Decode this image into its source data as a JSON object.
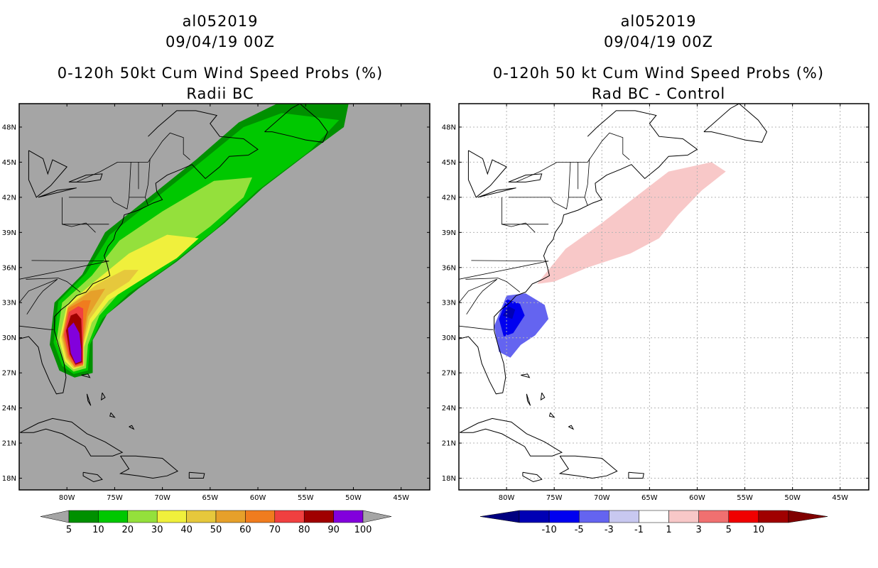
{
  "left_panel": {
    "title_lines": [
      "al052019",
      "09/04/19 00Z"
    ],
    "subtitle_lines": [
      "0-120h 50kt Cum Wind Speed Probs (%)",
      "Radii BC"
    ],
    "background": "#a5a5a5"
  },
  "right_panel": {
    "title_lines": [
      "al052019",
      "09/04/19 00Z"
    ],
    "subtitle_lines": [
      "0-120h 50 kt Cum Wind Speed Probs (%)",
      "Rad BC - Control"
    ],
    "background": "#ffffff"
  },
  "chart_data": [
    {
      "type": "heatmap",
      "title": "0-120h 50kt Cum Wind Speed Probs (%)",
      "subtitle": "Radii BC",
      "storm": "al052019",
      "init_time": "09/04/19 00Z",
      "xlim": [
        -85,
        -42
      ],
      "ylim": [
        17,
        50
      ],
      "x_ticks": [
        "80W",
        "75W",
        "70W",
        "65W",
        "60W",
        "55W",
        "50W",
        "45W"
      ],
      "y_ticks": [
        "48N",
        "45N",
        "42N",
        "39N",
        "36N",
        "33N",
        "30N",
        "27N",
        "24N",
        "21N",
        "18N"
      ],
      "grid": false,
      "colorbar": {
        "labels": [
          "5",
          "10",
          "20",
          "30",
          "40",
          "50",
          "60",
          "70",
          "80",
          "90",
          "100"
        ],
        "levels": [
          5,
          10,
          20,
          30,
          40,
          50,
          60,
          70,
          80,
          90,
          100
        ],
        "colors": [
          "#009000",
          "#00c800",
          "#94e03c",
          "#f0f03c",
          "#e6c83c",
          "#e6a02a",
          "#f07c1e",
          "#f04040",
          "#a00000",
          "#8200dc"
        ],
        "under_color": "#a5a5a5",
        "over_color": "#a5a5a5"
      },
      "contour_bands": [
        {
          "level": 5,
          "pts": [
            [
              -81.8,
              29.4
            ],
            [
              -81.3,
              33.0
            ],
            [
              -78.4,
              35.4
            ],
            [
              -76.0,
              39.0
            ],
            [
              -72.0,
              41.6
            ],
            [
              -66.5,
              45.2
            ],
            [
              -62.0,
              48.4
            ],
            [
              -58.0,
              50.0
            ],
            [
              -50.5,
              50.0
            ],
            [
              -51.0,
              48.0
            ],
            [
              -55.0,
              45.6
            ],
            [
              -59.5,
              42.8
            ],
            [
              -63.5,
              39.8
            ],
            [
              -68.5,
              36.5
            ],
            [
              -72.5,
              34.2
            ],
            [
              -75.8,
              32.0
            ],
            [
              -77.3,
              29.8
            ],
            [
              -77.3,
              27.0
            ],
            [
              -79.2,
              26.6
            ],
            [
              -80.8,
              27.2
            ]
          ]
        },
        {
          "level": 10,
          "pts": [
            [
              -81.4,
              29.6
            ],
            [
              -80.9,
              33.1
            ],
            [
              -78.0,
              35.5
            ],
            [
              -75.5,
              38.8
            ],
            [
              -71.5,
              41.4
            ],
            [
              -66.0,
              45.0
            ],
            [
              -61.5,
              48.0
            ],
            [
              -57.5,
              49.2
            ],
            [
              -51.5,
              48.6
            ],
            [
              -54.5,
              46.0
            ],
            [
              -60.0,
              42.6
            ],
            [
              -64.5,
              39.2
            ],
            [
              -69.5,
              36.0
            ],
            [
              -73.5,
              33.8
            ],
            [
              -76.3,
              31.6
            ],
            [
              -77.6,
              29.4
            ],
            [
              -77.8,
              27.2
            ],
            [
              -79.3,
              26.9
            ],
            [
              -80.5,
              27.6
            ]
          ]
        },
        {
          "level": 20,
          "pts": [
            [
              -81.1,
              29.7
            ],
            [
              -80.5,
              33.0
            ],
            [
              -77.4,
              35.3
            ],
            [
              -74.5,
              38.3
            ],
            [
              -70.0,
              40.8
            ],
            [
              -64.6,
              43.4
            ],
            [
              -60.6,
              43.7
            ],
            [
              -61.5,
              42.0
            ],
            [
              -65.0,
              39.5
            ],
            [
              -69.8,
              36.6
            ],
            [
              -74.0,
              34.3
            ],
            [
              -76.6,
              31.9
            ],
            [
              -77.8,
              29.4
            ],
            [
              -78.0,
              27.4
            ],
            [
              -79.3,
              27.1
            ],
            [
              -80.3,
              27.8
            ]
          ]
        },
        {
          "level": 30,
          "pts": [
            [
              -80.8,
              29.8
            ],
            [
              -80.0,
              32.8
            ],
            [
              -76.8,
              35.0
            ],
            [
              -73.5,
              37.2
            ],
            [
              -69.5,
              38.8
            ],
            [
              -66.2,
              38.5
            ],
            [
              -68.5,
              36.8
            ],
            [
              -72.5,
              34.8
            ],
            [
              -75.6,
              33.2
            ],
            [
              -77.4,
              31.3
            ],
            [
              -78.2,
              29.2
            ],
            [
              -78.2,
              27.6
            ],
            [
              -79.3,
              27.3
            ],
            [
              -80.2,
              28.0
            ]
          ]
        },
        {
          "level": 40,
          "pts": [
            [
              -80.6,
              30.0
            ],
            [
              -79.9,
              32.7
            ],
            [
              -76.8,
              34.6
            ],
            [
              -74.0,
              35.8
            ],
            [
              -72.5,
              35.8
            ],
            [
              -73.5,
              34.8
            ],
            [
              -75.8,
              33.6
            ],
            [
              -77.6,
              31.6
            ],
            [
              -78.3,
              29.3
            ],
            [
              -78.3,
              27.6
            ],
            [
              -79.3,
              27.4
            ],
            [
              -80.1,
              28.2
            ]
          ]
        },
        {
          "level": 50,
          "pts": [
            [
              -80.5,
              30.1
            ],
            [
              -79.9,
              32.6
            ],
            [
              -77.5,
              34.0
            ],
            [
              -76.0,
              34.2
            ],
            [
              -76.6,
              33.4
            ],
            [
              -77.8,
              31.8
            ],
            [
              -78.3,
              29.4
            ],
            [
              -78.3,
              27.6
            ],
            [
              -79.2,
              27.5
            ],
            [
              -80.0,
              28.3
            ]
          ]
        },
        {
          "level": 60,
          "pts": [
            [
              -80.4,
              30.2
            ],
            [
              -79.9,
              32.5
            ],
            [
              -78.3,
              33.2
            ],
            [
              -77.5,
              33.2
            ],
            [
              -77.9,
              32.1
            ],
            [
              -78.3,
              30.0
            ],
            [
              -78.3,
              27.7
            ],
            [
              -79.2,
              27.5
            ],
            [
              -79.9,
              28.4
            ]
          ]
        },
        {
          "level": 70,
          "pts": [
            [
              -80.3,
              30.3
            ],
            [
              -79.8,
              32.2
            ],
            [
              -78.8,
              32.7
            ],
            [
              -78.3,
              32.5
            ],
            [
              -78.3,
              30.5
            ],
            [
              -78.3,
              27.8
            ],
            [
              -79.1,
              27.6
            ],
            [
              -79.8,
              28.5
            ]
          ]
        },
        {
          "level": 80,
          "pts": [
            [
              -80.1,
              30.6
            ],
            [
              -79.6,
              31.9
            ],
            [
              -79.0,
              32.1
            ],
            [
              -78.5,
              31.6
            ],
            [
              -78.4,
              29.4
            ],
            [
              -78.4,
              27.9
            ],
            [
              -79.1,
              27.7
            ],
            [
              -79.7,
              28.6
            ]
          ]
        },
        {
          "level": 90,
          "pts": [
            [
              -79.9,
              30.8
            ],
            [
              -79.3,
              31.3
            ],
            [
              -78.7,
              30.4
            ],
            [
              -78.5,
              29.0
            ],
            [
              -78.5,
              28.0
            ],
            [
              -79.1,
              27.8
            ],
            [
              -79.6,
              28.7
            ]
          ]
        }
      ]
    },
    {
      "type": "heatmap",
      "title": "0-120h 50 kt Cum Wind Speed Probs (%)",
      "subtitle": "Rad BC - Control",
      "storm": "al052019",
      "init_time": "09/04/19 00Z",
      "xlim": [
        -85,
        -42
      ],
      "ylim": [
        17,
        50
      ],
      "x_ticks": [
        "80W",
        "75W",
        "70W",
        "65W",
        "60W",
        "55W",
        "50W",
        "45W"
      ],
      "y_ticks": [
        "48N",
        "45N",
        "42N",
        "39N",
        "36N",
        "33N",
        "30N",
        "27N",
        "24N",
        "21N",
        "18N"
      ],
      "grid": true,
      "colorbar": {
        "labels": [
          "-10",
          "-5",
          "-3",
          "-1",
          "1",
          "3",
          "5",
          "10"
        ],
        "levels": [
          -10,
          -5,
          -3,
          -1,
          1,
          3,
          5,
          10
        ],
        "colors": [
          "#0000b4",
          "#0000f0",
          "#6464f0",
          "#c8c8f0",
          "#ffffff",
          "#f8c8c8",
          "#f07070",
          "#f00000",
          "#a00000"
        ],
        "under_color": "#000080",
        "over_color": "#800000"
      },
      "contour_bands": [
        {
          "level": 1,
          "pts": [
            [
              -76.8,
              34.6
            ],
            [
              -73.8,
              37.6
            ],
            [
              -70.0,
              39.8
            ],
            [
              -66.2,
              42.2
            ],
            [
              -63.0,
              44.2
            ],
            [
              -58.5,
              45.0
            ],
            [
              -57.0,
              44.2
            ],
            [
              -59.5,
              42.6
            ],
            [
              -62.0,
              40.5
            ],
            [
              -64.0,
              38.5
            ],
            [
              -67.0,
              37.2
            ],
            [
              -71.5,
              36.0
            ],
            [
              -75.0,
              34.8
            ]
          ]
        },
        {
          "level": -3,
          "pts": [
            [
              -81.3,
              31.0
            ],
            [
              -80.0,
              33.6
            ],
            [
              -78.0,
              33.8
            ],
            [
              -76.0,
              32.8
            ],
            [
              -75.6,
              31.6
            ],
            [
              -77.0,
              30.2
            ],
            [
              -78.5,
              29.4
            ],
            [
              -79.6,
              28.3
            ],
            [
              -80.8,
              28.8
            ]
          ]
        },
        {
          "level": -5,
          "pts": [
            [
              -80.8,
              31.6
            ],
            [
              -80.0,
              33.3
            ],
            [
              -78.6,
              32.9
            ],
            [
              -78.1,
              31.9
            ],
            [
              -79.3,
              30.4
            ],
            [
              -80.3,
              30.1
            ]
          ]
        },
        {
          "level": -10,
          "pts": [
            [
              -80.4,
              31.9
            ],
            [
              -79.8,
              32.7
            ],
            [
              -79.1,
              32.4
            ],
            [
              -79.4,
              31.6
            ]
          ]
        }
      ]
    }
  ]
}
